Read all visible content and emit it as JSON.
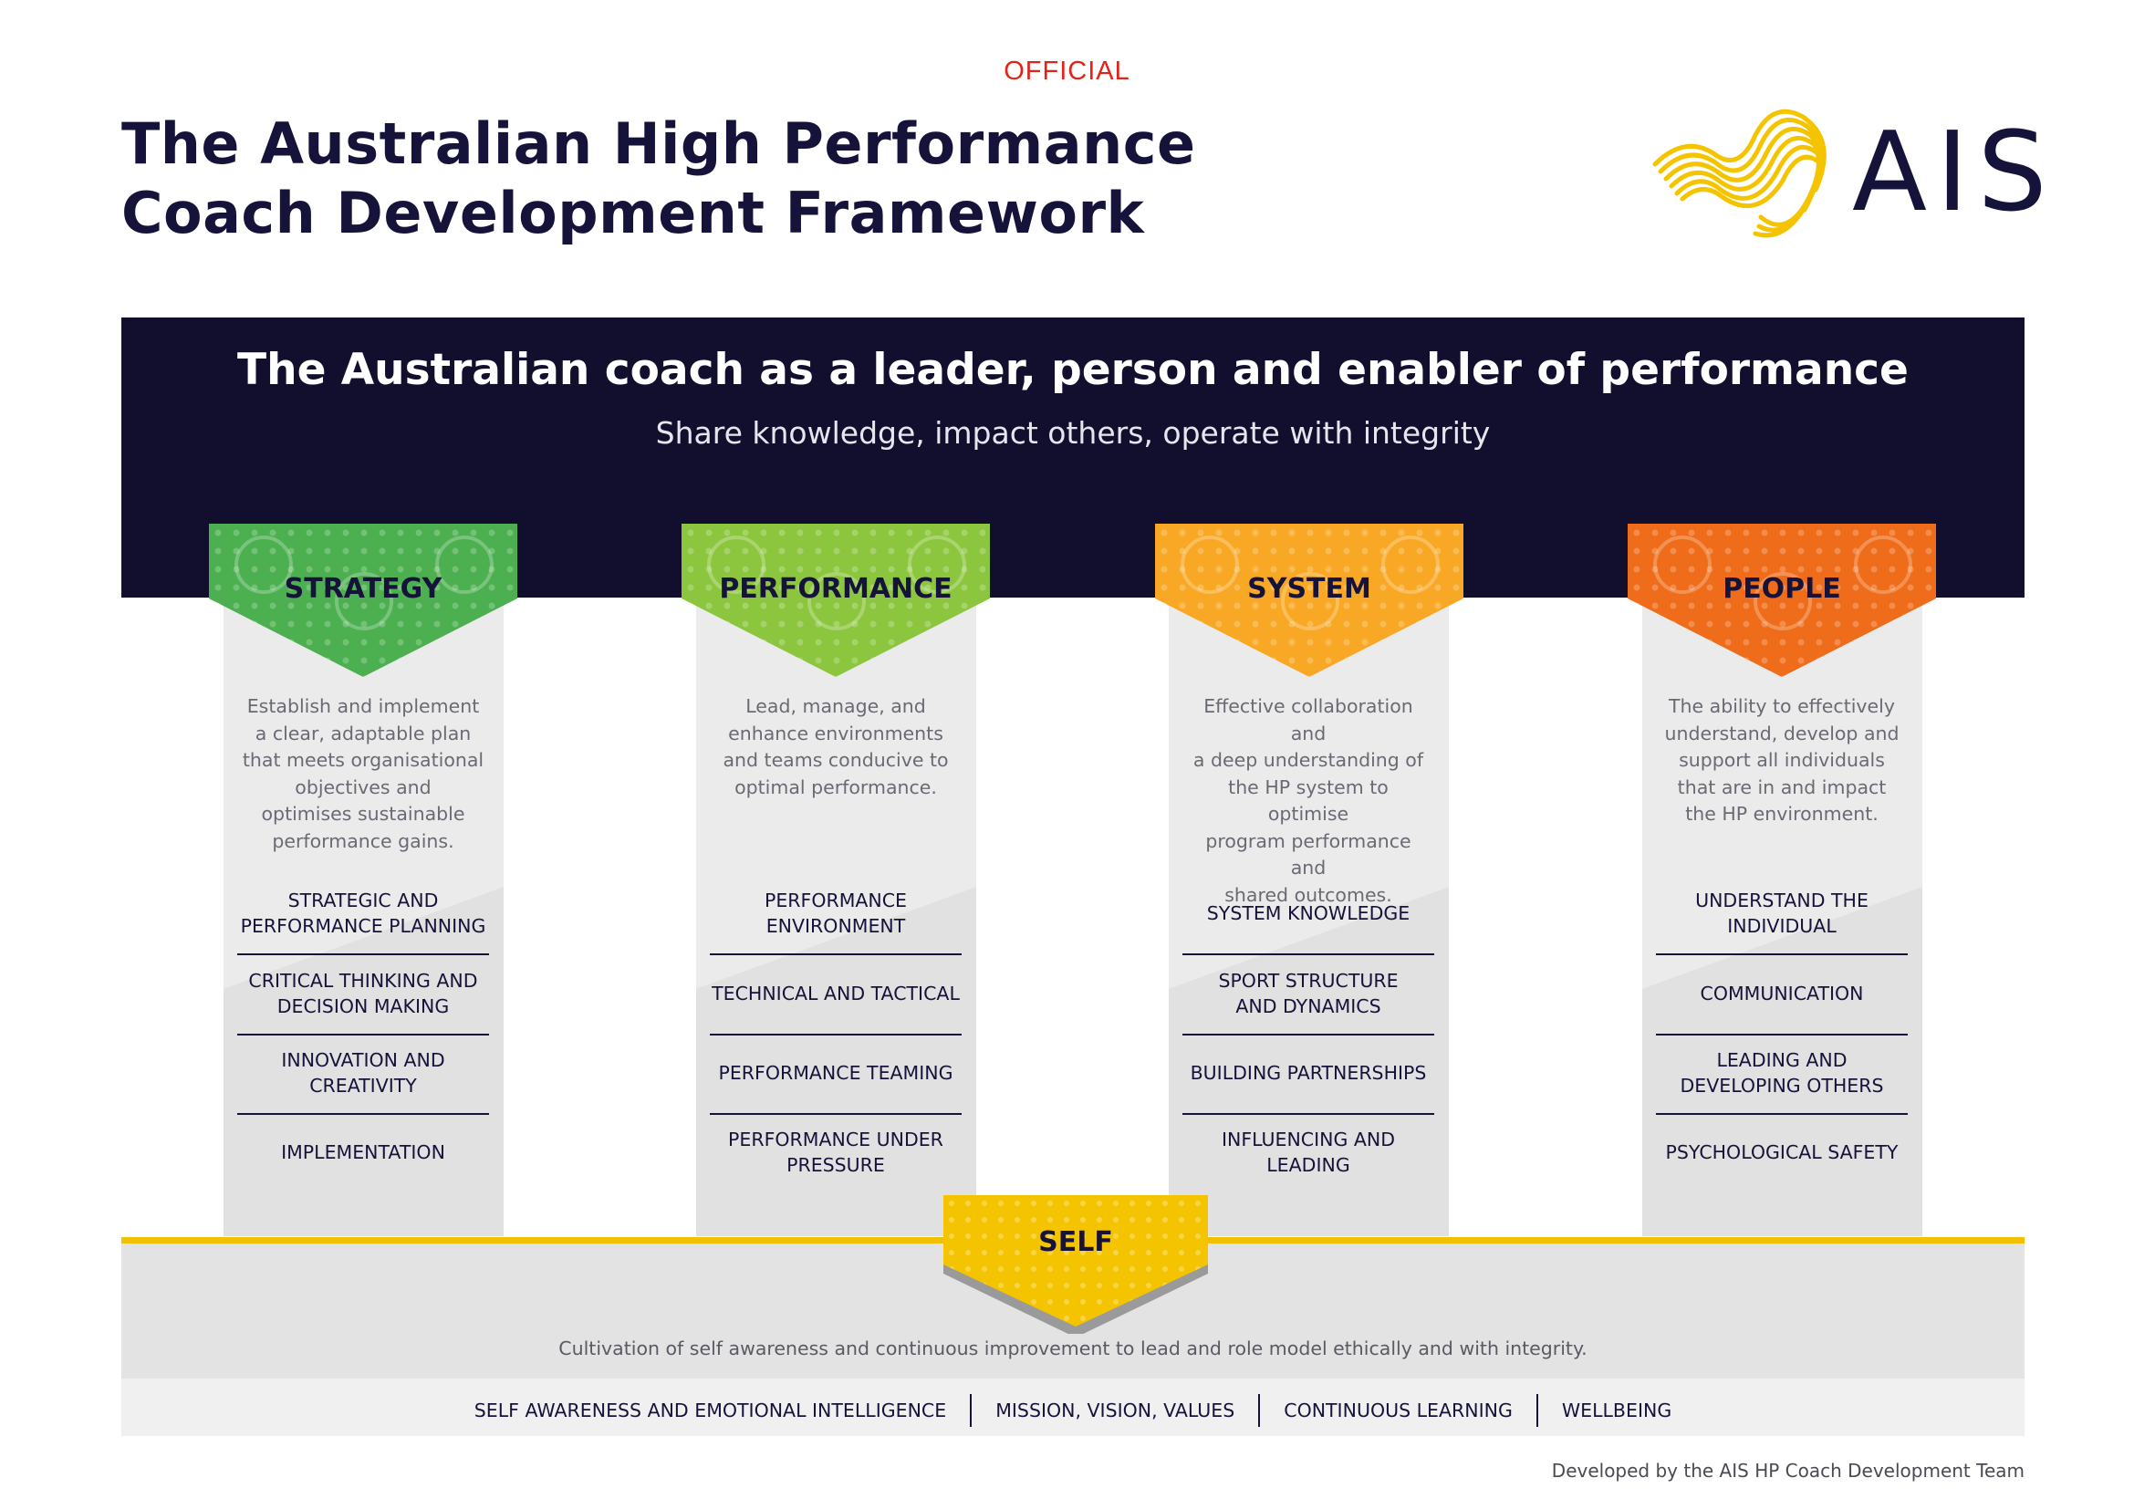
{
  "header": {
    "classification": "OFFICIAL",
    "title_line1": "The Australian High Performance",
    "title_line2": "Coach Development Framework",
    "logo_text": "AIS",
    "logo_icon": "ais-ribbon-logo-icon"
  },
  "banner": {
    "title": "The Australian coach as a leader, person and enabler of performance",
    "subtitle": "Share knowledge, impact others, operate with integrity"
  },
  "pillars": [
    {
      "name": "STRATEGY",
      "color": "#4caf50",
      "description": [
        "Establish and implement",
        "a clear, adaptable plan",
        "that meets organisational",
        "objectives and",
        "optimises sustainable",
        "performance gains."
      ],
      "items": [
        [
          "STRATEGIC AND",
          "PERFORMANCE PLANNING"
        ],
        [
          "CRITICAL THINKING AND",
          "DECISION MAKING"
        ],
        [
          "INNOVATION AND",
          "CREATIVITY"
        ],
        [
          "IMPLEMENTATION"
        ]
      ]
    },
    {
      "name": "PERFORMANCE",
      "color": "#8cc63f",
      "description": [
        "Lead, manage, and",
        "enhance environments",
        "and teams conducive to",
        "optimal performance."
      ],
      "items": [
        [
          "PERFORMANCE",
          "ENVIRONMENT"
        ],
        [
          "TECHNICAL AND TACTICAL"
        ],
        [
          "PERFORMANCE TEAMING"
        ],
        [
          "PERFORMANCE UNDER",
          "PRESSURE"
        ]
      ]
    },
    {
      "name": "SYSTEM",
      "color": "#f9a825",
      "description": [
        "Effective collaboration and",
        "a deep understanding of",
        "the HP system to optimise",
        "program performance and",
        "shared outcomes."
      ],
      "items": [
        [
          "SYSTEM KNOWLEDGE"
        ],
        [
          "SPORT STRUCTURE",
          "AND DYNAMICS"
        ],
        [
          "BUILDING PARTNERSHIPS"
        ],
        [
          "INFLUENCING AND LEADING"
        ]
      ]
    },
    {
      "name": "PEOPLE",
      "color": "#ef6c1a",
      "description": [
        "The ability to effectively",
        "understand, develop and",
        "support all individuals",
        "that are in and impact",
        "the HP environment."
      ],
      "items": [
        [
          "UNDERSTAND THE",
          "INDIVIDUAL"
        ],
        [
          "COMMUNICATION"
        ],
        [
          "LEADING AND",
          "DEVELOPING OTHERS"
        ],
        [
          "PSYCHOLOGICAL SAFETY"
        ]
      ]
    }
  ],
  "self": {
    "label": "SELF",
    "color": "#f5c400",
    "description": "Cultivation of self awareness and continuous improvement to lead and role model ethically and with integrity.",
    "items": [
      "SELF AWARENESS AND EMOTIONAL INTELLIGENCE",
      "MISSION, VISION, VALUES",
      "CONTINUOUS LEARNING",
      "WELLBEING"
    ]
  },
  "footer": "Developed by the AIS HP Coach Development Team",
  "colors": {
    "navy": "#120f2e",
    "official_red": "#e2231a",
    "logo_yellow": "#f5c400"
  }
}
